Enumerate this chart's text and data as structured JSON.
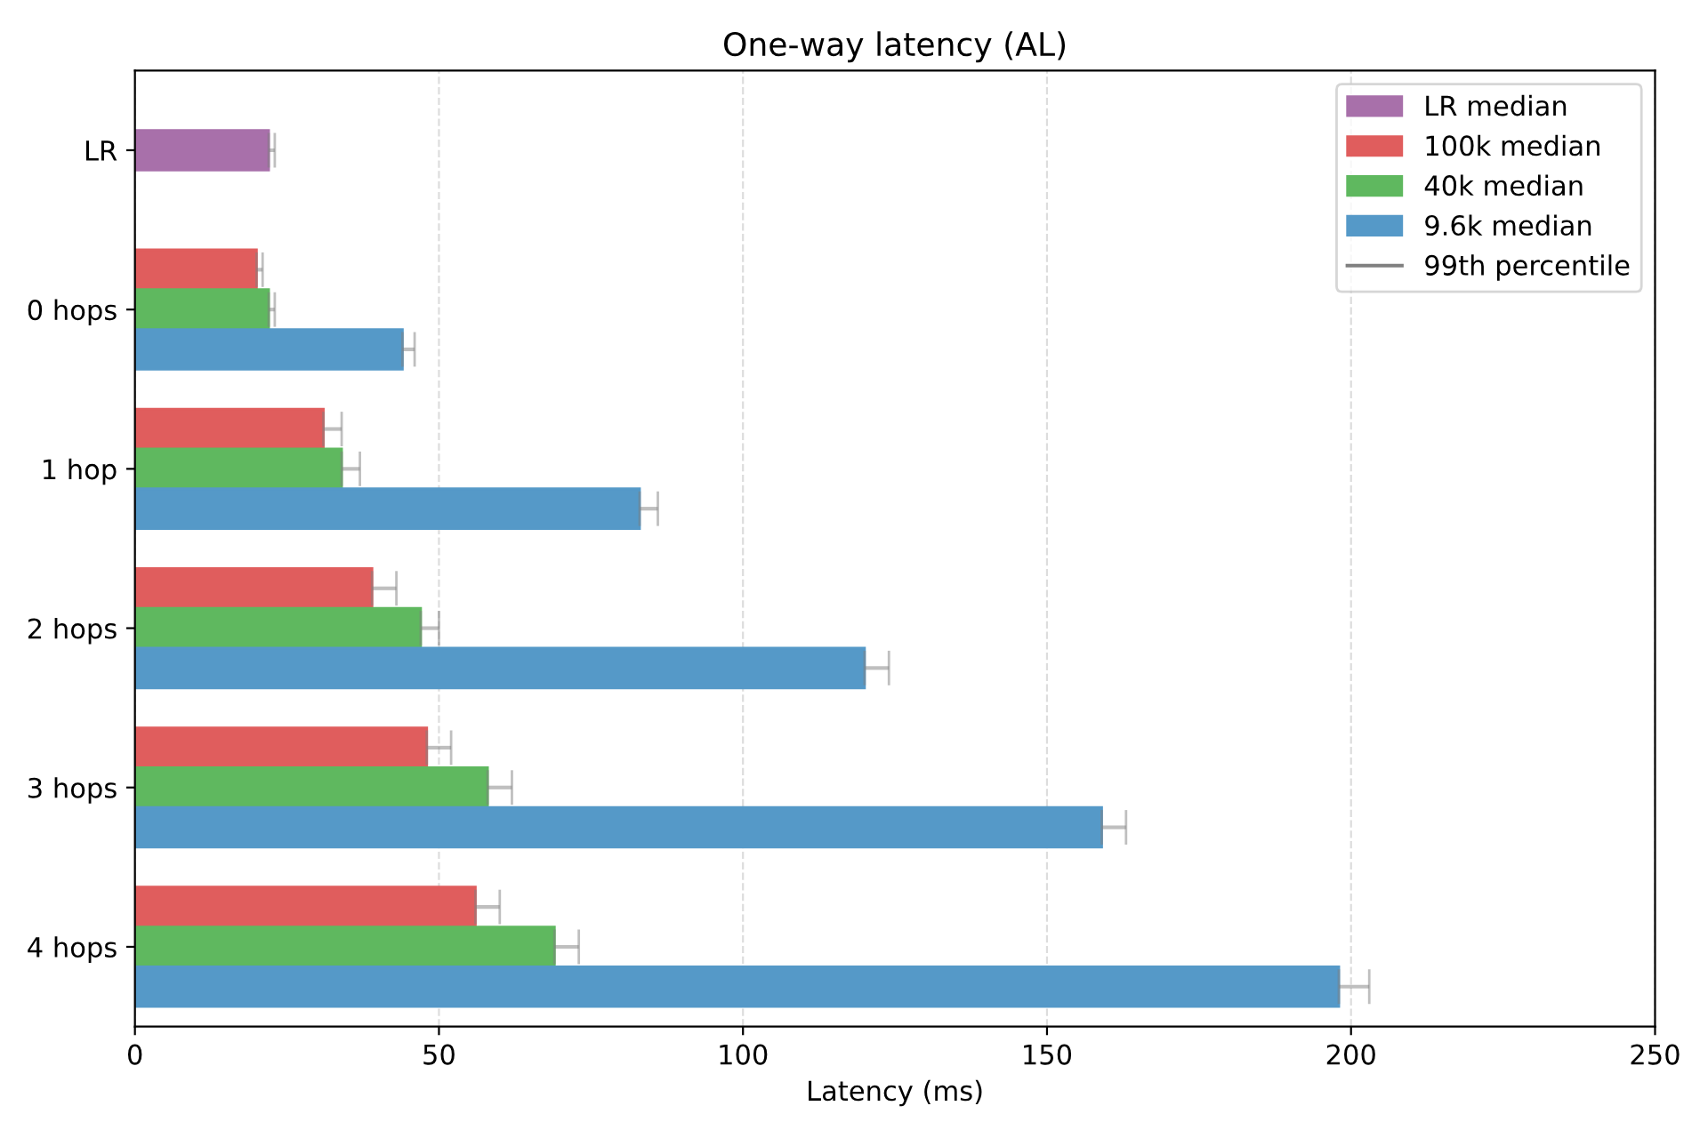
{
  "chart_data": {
    "type": "bar",
    "orientation": "horizontal",
    "title": "One-way latency (AL)",
    "xlabel": "Latency (ms)",
    "categories": [
      "LR",
      "0 hops",
      "1 hop",
      "2 hops",
      "3 hops",
      "4 hops"
    ],
    "series": [
      {
        "name": "LR median",
        "color": "#a870aa",
        "values": [
          22,
          null,
          null,
          null,
          null,
          null
        ],
        "errors": [
          [
            22,
            23
          ],
          null,
          null,
          null,
          null,
          null
        ]
      },
      {
        "name": "100k median",
        "color": "#e05d5d",
        "values": [
          null,
          20,
          31,
          39,
          48,
          56
        ],
        "errors": [
          null,
          [
            20,
            21
          ],
          [
            31,
            34
          ],
          [
            39,
            43
          ],
          [
            48,
            52
          ],
          [
            56,
            60
          ]
        ]
      },
      {
        "name": "40k median",
        "color": "#5fb85f",
        "values": [
          null,
          22,
          34,
          47,
          58,
          69
        ],
        "errors": [
          null,
          [
            22,
            23
          ],
          [
            34,
            37
          ],
          [
            47,
            50
          ],
          [
            58,
            62
          ],
          [
            69,
            73
          ]
        ]
      },
      {
        "name": "9.6k median",
        "color": "#5599c8",
        "values": [
          null,
          44,
          83,
          120,
          159,
          198
        ],
        "errors": [
          null,
          [
            44,
            46
          ],
          [
            83,
            86
          ],
          [
            120,
            124
          ],
          [
            159,
            163
          ],
          [
            198,
            203
          ]
        ]
      },
      {
        "name": "99th percentile",
        "type": "line",
        "color": "#808080",
        "values": [
          null,
          null,
          null,
          null,
          null,
          null
        ]
      }
    ],
    "xlim": [
      0,
      250
    ],
    "xticks": [
      0,
      50,
      100,
      150,
      200,
      250
    ],
    "grid": "x",
    "legend": "top right"
  }
}
